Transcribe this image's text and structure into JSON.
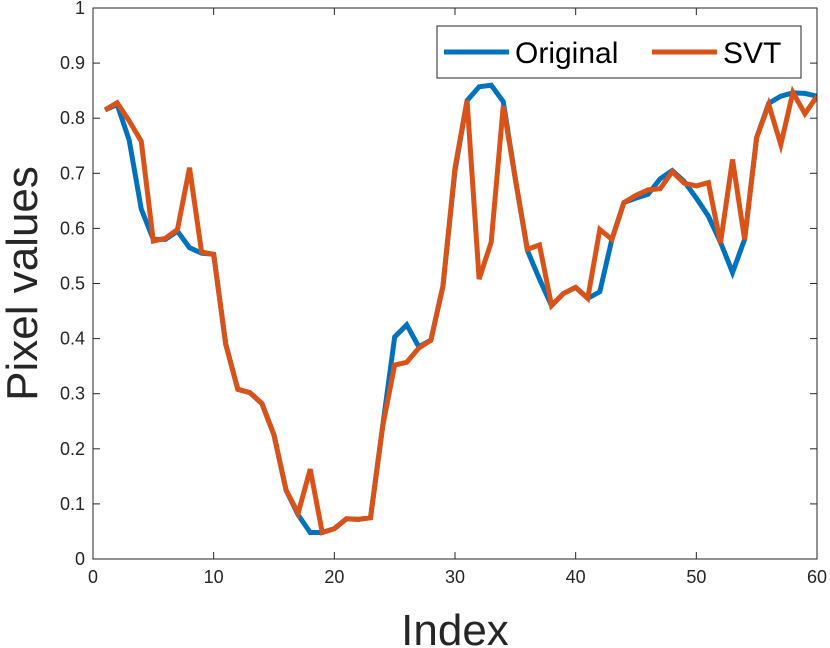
{
  "chart_data": {
    "type": "line",
    "xlabel": "Index",
    "ylabel": "Pixel values",
    "xlim": [
      0,
      60
    ],
    "ylim": [
      0,
      1
    ],
    "xticks": [
      0,
      10,
      20,
      30,
      40,
      50,
      60
    ],
    "yticks": [
      0,
      0.1,
      0.2,
      0.3,
      0.4,
      0.5,
      0.6,
      0.7,
      0.8,
      0.9,
      1
    ],
    "grid": false,
    "legend_position": "top-right",
    "x": [
      1,
      2,
      3,
      4,
      5,
      6,
      7,
      8,
      9,
      10,
      11,
      12,
      13,
      14,
      15,
      16,
      17,
      18,
      19,
      20,
      21,
      22,
      23,
      24,
      25,
      26,
      27,
      28,
      29,
      30,
      31,
      32,
      33,
      34,
      35,
      36,
      37,
      38,
      39,
      40,
      41,
      42,
      43,
      44,
      45,
      46,
      47,
      48,
      49,
      50,
      51,
      52,
      53,
      54,
      55,
      56,
      57,
      58,
      59,
      60
    ],
    "series": [
      {
        "name": "Original",
        "color": "#0072BD",
        "values": [
          0.815,
          0.825,
          0.76,
          0.635,
          0.58,
          0.58,
          0.595,
          0.565,
          0.555,
          0.553,
          0.39,
          0.308,
          0.302,
          0.282,
          0.225,
          0.125,
          0.08,
          0.048,
          0.048,
          0.055,
          0.073,
          0.072,
          0.075,
          0.24,
          0.403,
          0.425,
          0.385,
          0.397,
          0.495,
          0.705,
          0.832,
          0.857,
          0.86,
          0.83,
          0.69,
          0.56,
          0.508,
          0.46,
          0.482,
          0.493,
          0.473,
          0.485,
          0.58,
          0.647,
          0.655,
          0.662,
          0.69,
          0.705,
          0.685,
          0.655,
          0.622,
          0.575,
          0.52,
          0.58,
          0.765,
          0.827,
          0.84,
          0.846,
          0.845,
          0.84
        ]
      },
      {
        "name": "SVT",
        "color": "#D95319",
        "values": [
          0.815,
          0.828,
          0.795,
          0.758,
          0.577,
          0.582,
          0.598,
          0.71,
          0.557,
          0.553,
          0.39,
          0.308,
          0.302,
          0.282,
          0.225,
          0.125,
          0.083,
          0.163,
          0.048,
          0.055,
          0.073,
          0.072,
          0.075,
          0.24,
          0.352,
          0.357,
          0.383,
          0.397,
          0.495,
          0.71,
          0.832,
          0.508,
          0.575,
          0.822,
          0.69,
          0.562,
          0.57,
          0.46,
          0.482,
          0.493,
          0.473,
          0.598,
          0.58,
          0.647,
          0.66,
          0.67,
          0.672,
          0.703,
          0.682,
          0.677,
          0.683,
          0.573,
          0.725,
          0.58,
          0.765,
          0.825,
          0.752,
          0.847,
          0.808,
          0.84
        ]
      }
    ]
  }
}
